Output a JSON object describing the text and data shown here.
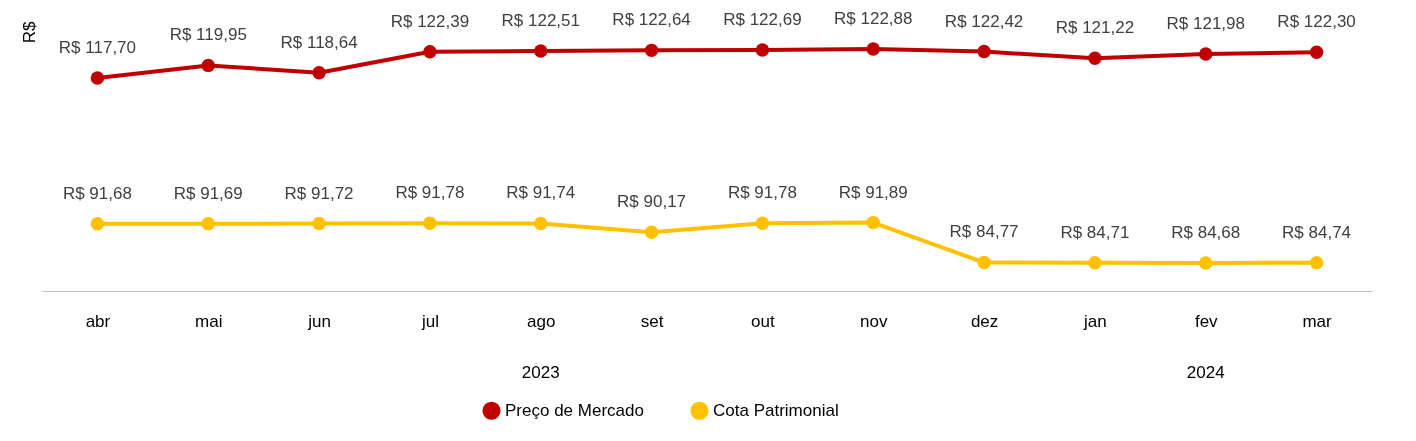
{
  "chart_data": {
    "type": "line",
    "ylabel": "R$",
    "categories": [
      "abr",
      "mai",
      "jun",
      "jul",
      "ago",
      "set",
      "out",
      "nov",
      "dez",
      "jan",
      "fev",
      "mar"
    ],
    "grid": false,
    "legend": "bottom",
    "marker": "circle",
    "line_style": "solid",
    "series": [
      {
        "name": "Preço de Mercado",
        "color": "#c00000",
        "values": [
          117.7,
          119.95,
          118.64,
          122.39,
          122.51,
          122.64,
          122.69,
          122.88,
          122.42,
          121.22,
          121.98,
          122.3
        ],
        "value_labels": [
          "R$ 117,70",
          "R$ 119,95",
          "R$ 118,64",
          "R$ 122,39",
          "R$ 122,51",
          "R$ 122,64",
          "R$ 122,69",
          "R$ 122,88",
          "R$ 122,42",
          "R$ 121,22",
          "R$ 121,98",
          "R$ 122,30"
        ]
      },
      {
        "name": "Cota Patrimonial",
        "color": "#ffc000",
        "values": [
          91.68,
          91.69,
          91.72,
          91.78,
          91.74,
          90.17,
          91.78,
          91.89,
          84.77,
          84.71,
          84.68,
          84.74
        ],
        "value_labels": [
          "R$ 91,68",
          "R$ 91,69",
          "R$ 91,72",
          "R$ 91,78",
          "R$ 91,74",
          "R$ 90,17",
          "R$ 91,78",
          "R$ 91,89",
          "R$ 84,77",
          "R$ 84,71",
          "R$ 84,68",
          "R$ 84,74"
        ]
      }
    ],
    "annotations": [
      "2023",
      "2024"
    ]
  }
}
